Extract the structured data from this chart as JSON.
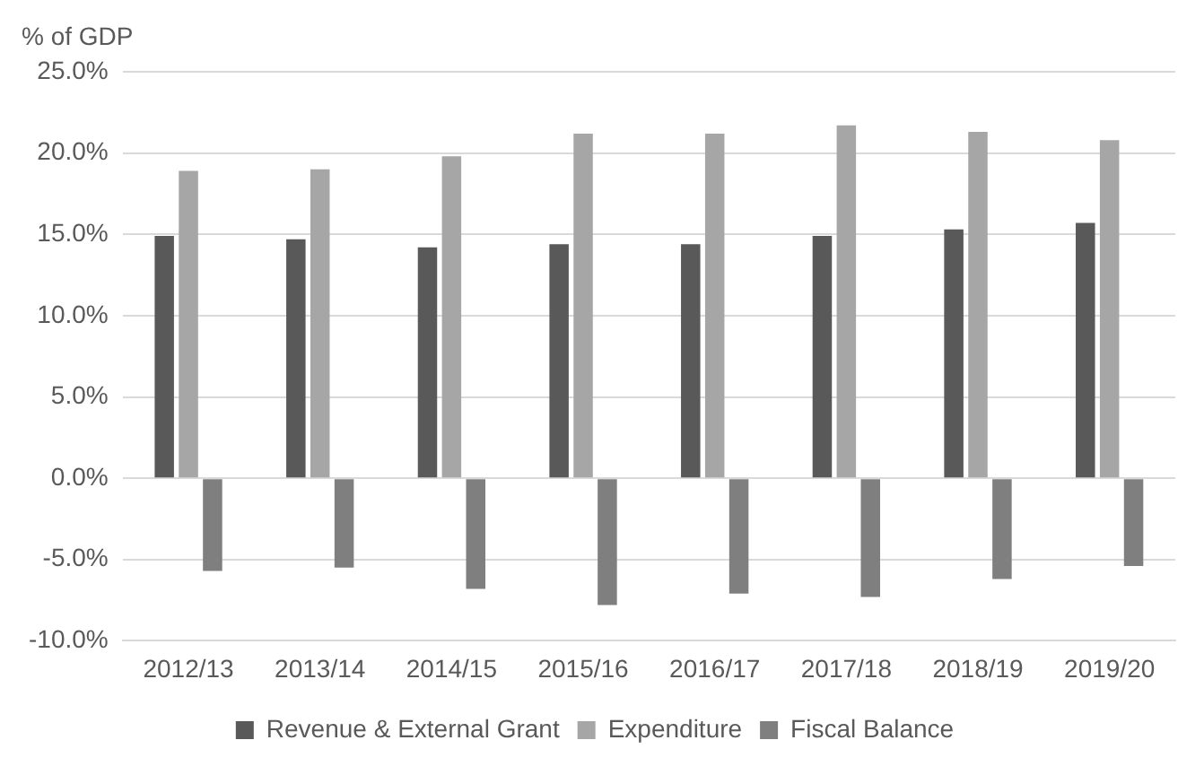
{
  "chart_data": {
    "type": "bar",
    "ylabel": "% of GDP",
    "categories": [
      "2012/13",
      "2013/14",
      "2014/15",
      "2015/16",
      "2016/17",
      "2017/18",
      "2018/19",
      "2019/20"
    ],
    "series": [
      {
        "name": "Revenue & External Grant",
        "color": "#595959",
        "values": [
          14.9,
          14.7,
          14.2,
          14.4,
          14.4,
          14.9,
          15.3,
          15.7
        ]
      },
      {
        "name": "Expenditure",
        "color": "#a6a6a6",
        "values": [
          18.9,
          19.0,
          19.8,
          21.2,
          21.2,
          21.7,
          21.3,
          20.8
        ]
      },
      {
        "name": "Fiscal Balance",
        "color": "#7f7f7f",
        "values": [
          -5.7,
          -5.5,
          -6.8,
          -7.8,
          -7.1,
          -7.3,
          -6.2,
          -5.4
        ]
      }
    ],
    "ylim": [
      -10,
      25
    ],
    "yticks": [
      {
        "value": -10,
        "label": "-10.0%"
      },
      {
        "value": -5,
        "label": "-5.0%"
      },
      {
        "value": 0,
        "label": "0.0%"
      },
      {
        "value": 5,
        "label": "5.0%"
      },
      {
        "value": 10,
        "label": "10.0%"
      },
      {
        "value": 15,
        "label": "15.0%"
      },
      {
        "value": 20,
        "label": "20.0%"
      },
      {
        "value": 25,
        "label": "25.0%"
      }
    ],
    "grid": "y",
    "legend": "bottom"
  }
}
